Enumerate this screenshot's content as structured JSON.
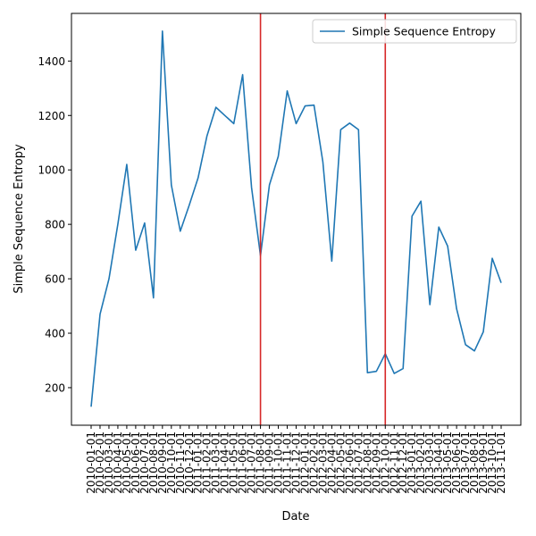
{
  "chart_data": {
    "type": "line",
    "xlabel": "Date",
    "ylabel": "Simple Sequence Entropy",
    "ylim": [
      62,
      1575
    ],
    "yticks": [
      200,
      400,
      600,
      800,
      1000,
      1200,
      1400
    ],
    "grid": false,
    "legend_position": "top-right",
    "x": [
      "2010-01-01",
      "2010-02-01",
      "2010-03-01",
      "2010-04-01",
      "2010-05-01",
      "2010-06-01",
      "2010-07-01",
      "2010-08-01",
      "2010-09-01",
      "2010-10-01",
      "2010-11-01",
      "2010-12-01",
      "2011-01-01",
      "2011-02-01",
      "2011-03-01",
      "2011-04-01",
      "2011-05-01",
      "2011-06-01",
      "2011-07-01",
      "2011-08-01",
      "2011-09-01",
      "2011-10-01",
      "2011-11-01",
      "2011-12-01",
      "2012-01-01",
      "2012-02-01",
      "2012-03-01",
      "2012-04-01",
      "2012-05-01",
      "2012-06-01",
      "2012-07-01",
      "2012-08-01",
      "2012-09-01",
      "2012-10-01",
      "2012-11-01",
      "2012-12-01",
      "2013-01-01",
      "2013-02-01",
      "2013-03-01",
      "2013-04-01",
      "2013-05-01",
      "2013-06-01",
      "2013-07-01",
      "2013-08-01",
      "2013-09-01",
      "2013-10-01",
      "2013-11-01"
    ],
    "series": [
      {
        "name": "Simple Sequence Entropy",
        "color": "#1f77b4",
        "values": [
          130,
          470,
          600,
          800,
          1020,
          705,
          805,
          530,
          1510,
          945,
          775,
          870,
          970,
          1125,
          1230,
          1200,
          1170,
          1350,
          935,
          685,
          945,
          1050,
          1290,
          1170,
          1235,
          1238,
          1030,
          665,
          1148,
          1172,
          1148,
          255,
          260,
          325,
          252,
          270,
          830,
          885,
          505,
          790,
          720,
          490,
          358,
          335,
          405,
          675,
          585
        ]
      }
    ],
    "vlines": {
      "color": "#d62728",
      "x": [
        "2011-08-01",
        "2012-10-01"
      ]
    }
  }
}
